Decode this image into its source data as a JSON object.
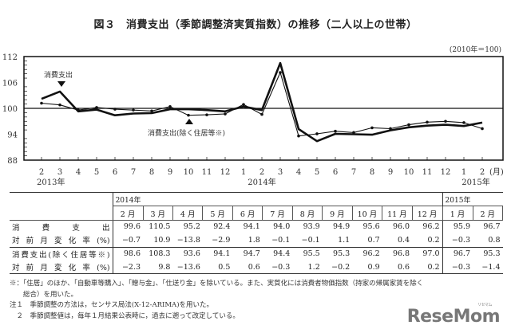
{
  "title": "図３　消費支出（季節調整済実質指数）の推移（二人以上の世帯）",
  "base_note": "(2010年＝100)",
  "chart_data": {
    "type": "line",
    "title": "図３　消費支出（季節調整済実質指数）の推移（二人以上の世帯）",
    "xlabel": "(月)",
    "ylabel": "",
    "ylim": [
      88,
      112
    ],
    "yticks": [
      88,
      94,
      100,
      106,
      112
    ],
    "reference_line": 100,
    "grid": false,
    "x": [
      "2013-02",
      "2013-03",
      "2013-04",
      "2013-05",
      "2013-06",
      "2013-07",
      "2013-08",
      "2013-09",
      "2013-10",
      "2013-11",
      "2013-12",
      "2014-01",
      "2014-02",
      "2014-03",
      "2014-04",
      "2014-05",
      "2014-06",
      "2014-07",
      "2014-08",
      "2014-09",
      "2014-10",
      "2014-11",
      "2014-12",
      "2015-01",
      "2015-02"
    ],
    "x_tick_labels": [
      "2",
      "3",
      "4",
      "5",
      "6",
      "7",
      "8",
      "9",
      "10",
      "11",
      "12",
      "1",
      "2",
      "3",
      "4",
      "5",
      "6",
      "7",
      "8",
      "9",
      "10",
      "11",
      "12",
      "1",
      "2"
    ],
    "year_labels": [
      {
        "label": "2013年",
        "at": 0
      },
      {
        "label": "2014年",
        "at": 12
      },
      {
        "label": "2015年",
        "at": 24
      }
    ],
    "series": [
      {
        "name": "消費支出",
        "style": "thick",
        "values": [
          102.2,
          103.9,
          99.3,
          99.7,
          98.4,
          98.8,
          98.9,
          99.8,
          99.8,
          99.6,
          99.3,
          100.4,
          99.6,
          110.5,
          95.2,
          92.4,
          94.1,
          94.0,
          93.9,
          94.9,
          95.6,
          96.0,
          96.2,
          95.9,
          96.7
        ]
      },
      {
        "name": "消費支出(除く住居等※)",
        "style": "thin-marker",
        "values": [
          101.2,
          100.8,
          99.6,
          100.2,
          99.8,
          99.6,
          99.4,
          100.4,
          98.4,
          98.5,
          98.7,
          100.9,
          98.6,
          108.3,
          93.6,
          94.1,
          94.7,
          94.4,
          95.5,
          95.3,
          96.2,
          96.8,
          97.0,
          96.7,
          95.3
        ]
      }
    ],
    "annotations": [
      {
        "text": "消費支出",
        "marker": "▼",
        "series": 0,
        "at": 1
      },
      {
        "text": "消費支出(除く住居等※)",
        "marker": "▲",
        "series": 1,
        "at": 8
      }
    ]
  },
  "axis": {
    "yticks": [
      "112",
      "106",
      "100",
      "94",
      "88"
    ],
    "months": [
      "2",
      "3",
      "4",
      "5",
      "6",
      "7",
      "8",
      "9",
      "10",
      "11",
      "12",
      "1",
      "2",
      "3",
      "4",
      "5",
      "6",
      "7",
      "8",
      "9",
      "10",
      "11",
      "12",
      "1",
      "2"
    ],
    "unit": "(月)",
    "years": [
      "2013年",
      "2014年",
      "2015年"
    ]
  },
  "labels": {
    "series1": "消費支出",
    "series2": "消費支出(除く住居等※)"
  },
  "table": {
    "year_2014": "2014年",
    "year_2015": "2015年",
    "months": [
      "2 月",
      "3 月",
      "4 月",
      "5 月",
      "6 月",
      "7 月",
      "8 月",
      "9 月",
      "10 月",
      "11 月",
      "12 月",
      "1 月",
      "2 月"
    ],
    "rows": [
      {
        "label": "消　費　支　出",
        "values": [
          "99.6",
          "110.5",
          "95.2",
          "92.4",
          "94.1",
          "94.0",
          "93.9",
          "94.9",
          "95.6",
          "96.0",
          "96.2",
          "95.9",
          "96.7"
        ]
      },
      {
        "label": "対前月変化率(%)",
        "values": [
          "−0.7",
          "10.9",
          "−13.8",
          "−2.9",
          "1.8",
          "−0.1",
          "−0.1",
          "1.1",
          "0.7",
          "0.4",
          "0.2",
          "−0.3",
          "0.8"
        ]
      },
      {
        "label": "消費支出(除く住居等※)",
        "values": [
          "98.6",
          "108.3",
          "93.6",
          "94.1",
          "94.7",
          "94.4",
          "95.5",
          "95.3",
          "96.2",
          "96.8",
          "97.0",
          "96.7",
          "95.3"
        ]
      },
      {
        "label": "対前月変化率(%)",
        "values": [
          "−2.3",
          "9.8",
          "−13.6",
          "0.5",
          "0.6",
          "−0.3",
          "1.2",
          "−0.2",
          "0.9",
          "0.6",
          "0.2",
          "−0.3",
          "−1.4"
        ]
      }
    ]
  },
  "notes": [
    "※：「住居」のほか、「自動車等購入」、「贈与金」、「仕送り金」を除いている。また、実質化には消費者物価指数（持家の帰属家賃を除く",
    "　　総合）を用いた。",
    "注１　季節調整の方法は，センサス局法(X-12-ARIMA)を用いた。",
    "　２　季節調整値は，毎年１月結果公表時に，過去に遡って改定している。"
  ],
  "logo": {
    "text": "ReseMom",
    "ruby": "リセマム"
  },
  "colors": {
    "line": "#111111",
    "text": "#222222",
    "logo": "#777777"
  }
}
